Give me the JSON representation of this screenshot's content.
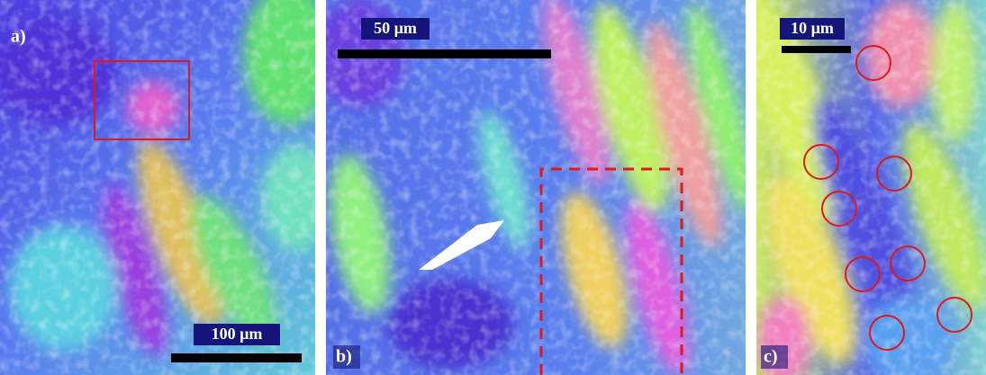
{
  "panels": [
    {
      "label": "a)",
      "scale_bar": "100 µm"
    },
    {
      "label": "b)",
      "scale_bar": "50 µm"
    },
    {
      "label": "c)",
      "scale_bar": "10 µm"
    }
  ]
}
